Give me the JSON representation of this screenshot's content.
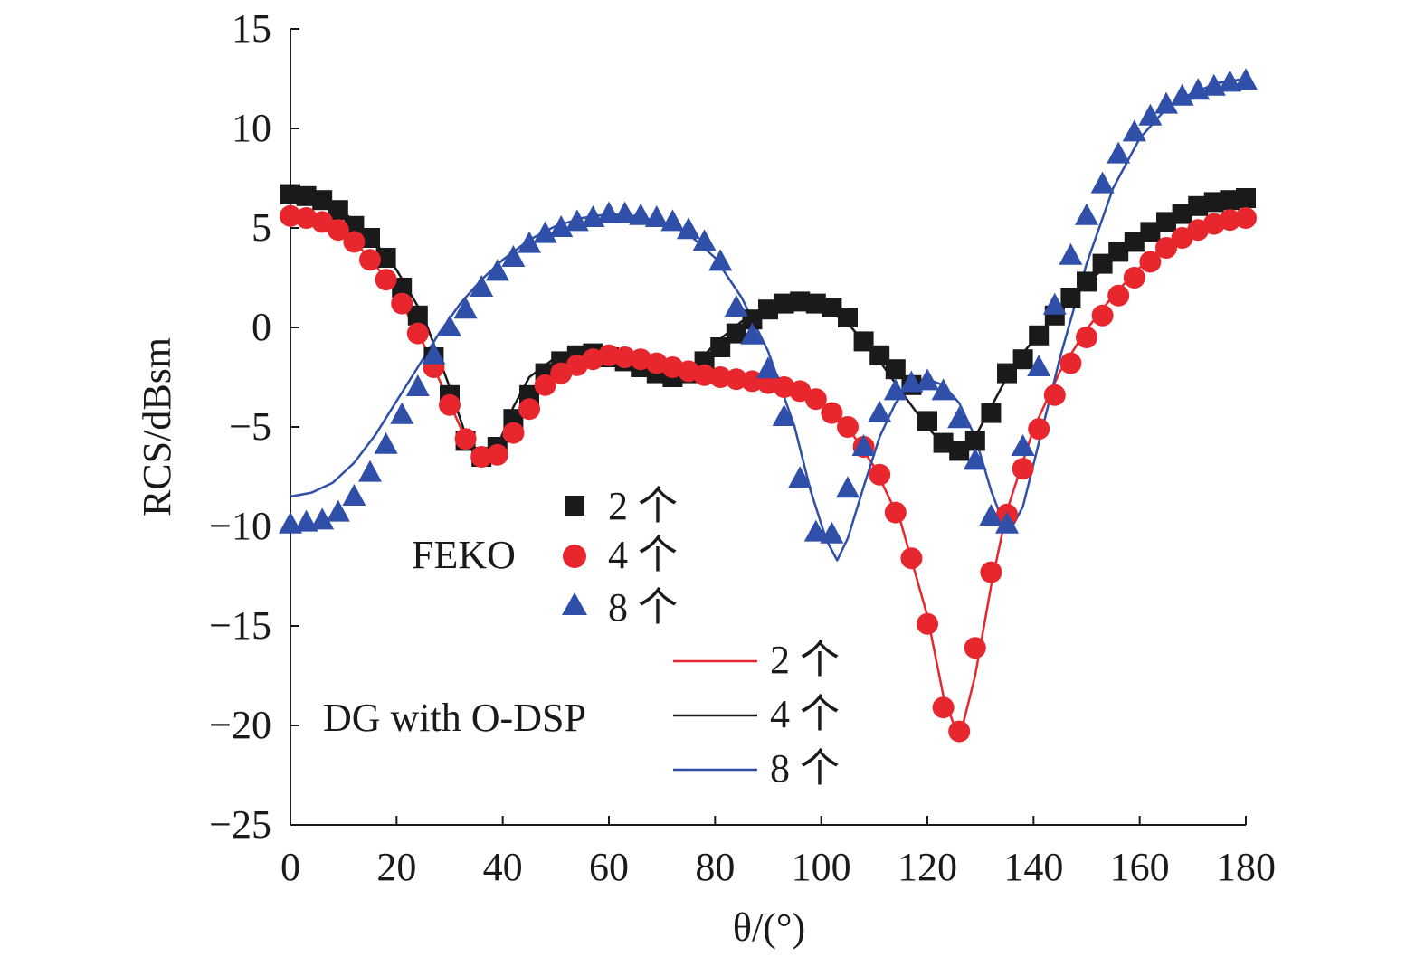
{
  "chart_data": {
    "type": "line",
    "title": "",
    "xlabel": "θ/(°)",
    "ylabel": "RCS/dBsm",
    "xlim": [
      0,
      180
    ],
    "ylim": [
      -25,
      15
    ],
    "xticks": [
      0,
      20,
      40,
      60,
      80,
      100,
      120,
      140,
      160,
      180
    ],
    "yticks": [
      15,
      10,
      5,
      0,
      -5,
      -10,
      -15,
      -20,
      -25
    ],
    "grid": false,
    "legend": {
      "feko_label": "FEKO",
      "dg_label": "DG with O-DSP",
      "feko_entries": [
        "2 个",
        "4 个",
        "8 个"
      ],
      "dg_entries": [
        "2 个",
        "4 个",
        "8 个"
      ]
    },
    "colors": {
      "two": "#1a1a1a",
      "four": "#e8262d",
      "eight": "#2f4fa8",
      "dg_two": "#e8262d",
      "dg_four": "#1a1a1a",
      "dg_eight": "#2f4fa8"
    },
    "series": [
      {
        "name": "FEKO 2 个",
        "marker": "square",
        "color": "#1a1a1a",
        "x": [
          0,
          3,
          6,
          9,
          12,
          15,
          18,
          21,
          24,
          27,
          30,
          33,
          36,
          39,
          42,
          45,
          48,
          51,
          54,
          57,
          60,
          63,
          66,
          69,
          72,
          75,
          78,
          81,
          84,
          87,
          90,
          93,
          96,
          99,
          102,
          105,
          108,
          111,
          114,
          117,
          120,
          123,
          126,
          129,
          132,
          135,
          138,
          141,
          144,
          147,
          150,
          153,
          156,
          159,
          162,
          165,
          168,
          171,
          174,
          177,
          180
        ],
        "y": [
          6.7,
          6.6,
          6.4,
          5.9,
          5.1,
          4.5,
          3.5,
          2.0,
          0.6,
          -1.5,
          -3.4,
          -5.7,
          -6.5,
          -6.0,
          -4.6,
          -3.4,
          -2.3,
          -1.7,
          -1.4,
          -1.3,
          -1.5,
          -1.7,
          -2.0,
          -2.3,
          -2.5,
          -2.3,
          -1.7,
          -1.0,
          -0.3,
          0.4,
          0.9,
          1.2,
          1.3,
          1.2,
          1.0,
          0.5,
          -0.7,
          -1.4,
          -2.1,
          -2.9,
          -4.7,
          -5.8,
          -6.2,
          -5.7,
          -4.3,
          -2.3,
          -1.6,
          -0.4,
          0.6,
          1.5,
          2.3,
          3.2,
          3.8,
          4.3,
          4.8,
          5.3,
          5.7,
          6.1,
          6.3,
          6.4,
          6.5
        ]
      },
      {
        "name": "FEKO 4 个",
        "marker": "circle",
        "color": "#e8262d",
        "x": [
          0,
          3,
          6,
          9,
          12,
          15,
          18,
          21,
          24,
          27,
          30,
          33,
          36,
          39,
          42,
          45,
          48,
          51,
          54,
          57,
          60,
          63,
          66,
          69,
          72,
          75,
          78,
          81,
          84,
          87,
          90,
          93,
          96,
          99,
          102,
          105,
          108,
          111,
          114,
          117,
          120,
          123,
          126,
          129,
          132,
          135,
          138,
          141,
          144,
          147,
          150,
          153,
          156,
          159,
          162,
          165,
          168,
          171,
          174,
          177,
          180
        ],
        "y": [
          5.6,
          5.5,
          5.3,
          4.9,
          4.3,
          3.4,
          2.4,
          1.2,
          -0.3,
          -2.0,
          -3.9,
          -5.6,
          -6.5,
          -6.4,
          -5.3,
          -4.1,
          -2.9,
          -2.3,
          -1.9,
          -1.6,
          -1.4,
          -1.5,
          -1.6,
          -1.8,
          -2.0,
          -2.2,
          -2.4,
          -2.5,
          -2.6,
          -2.7,
          -2.8,
          -3.0,
          -3.2,
          -3.6,
          -4.3,
          -5.0,
          -6.0,
          -7.4,
          -9.3,
          -11.6,
          -14.9,
          -19.1,
          -20.3,
          -16.1,
          -12.3,
          -9.4,
          -7.1,
          -5.1,
          -3.4,
          -1.8,
          -0.5,
          0.6,
          1.6,
          2.5,
          3.3,
          4.0,
          4.5,
          4.9,
          5.2,
          5.4,
          5.5
        ]
      },
      {
        "name": "FEKO 8 个",
        "marker": "triangle",
        "color": "#2f4fa8",
        "x": [
          0,
          3,
          6,
          9,
          12,
          15,
          18,
          21,
          24,
          27,
          30,
          33,
          36,
          39,
          42,
          45,
          48,
          51,
          54,
          57,
          60,
          63,
          66,
          69,
          72,
          75,
          78,
          81,
          84,
          87,
          90,
          93,
          96,
          99,
          102,
          105,
          108,
          111,
          114,
          117,
          120,
          123,
          126,
          129,
          132,
          135,
          138,
          141,
          144,
          147,
          150,
          153,
          156,
          159,
          162,
          165,
          168,
          171,
          174,
          177,
          180
        ],
        "y": [
          -9.9,
          -9.8,
          -9.7,
          -9.3,
          -8.5,
          -7.3,
          -5.9,
          -4.4,
          -3.0,
          -1.4,
          0.0,
          0.9,
          2.0,
          2.8,
          3.5,
          4.2,
          4.7,
          5.0,
          5.3,
          5.5,
          5.7,
          5.7,
          5.6,
          5.5,
          5.3,
          4.9,
          4.3,
          3.3,
          1.0,
          -0.4,
          -2.1,
          -4.5,
          -7.6,
          -10.3,
          -10.4,
          -8.1,
          -6.0,
          -4.3,
          -3.2,
          -2.8,
          -2.7,
          -3.2,
          -4.6,
          -6.7,
          -9.5,
          -9.9,
          -6.0,
          -2.0,
          1.1,
          3.6,
          5.6,
          7.2,
          8.7,
          9.8,
          10.6,
          11.2,
          11.6,
          11.9,
          12.1,
          12.3,
          12.4
        ]
      },
      {
        "name": "DG with O-DSP 2 个",
        "marker": "line",
        "color": "#e8262d",
        "x": [
          0,
          5,
          10,
          15,
          20,
          25,
          30,
          33,
          35,
          37,
          40,
          45,
          50,
          55,
          60,
          65,
          70,
          75,
          80,
          85,
          90,
          95,
          100,
          105,
          110,
          115,
          120,
          123,
          126,
          129,
          132,
          135,
          140,
          145,
          150,
          155,
          160,
          165,
          170,
          175,
          180
        ],
        "y": [
          5.6,
          5.4,
          4.8,
          3.5,
          1.7,
          -0.8,
          -3.8,
          -5.6,
          -6.4,
          -6.6,
          -5.8,
          -3.8,
          -2.5,
          -1.8,
          -1.5,
          -1.6,
          -1.9,
          -2.2,
          -2.4,
          -2.6,
          -2.8,
          -3.2,
          -3.8,
          -5.0,
          -7.0,
          -9.8,
          -14.5,
          -18.5,
          -20.7,
          -17.5,
          -13.0,
          -9.2,
          -5.1,
          -2.2,
          -0.1,
          1.6,
          3.0,
          4.2,
          4.8,
          5.3,
          5.5
        ]
      },
      {
        "name": "DG with O-DSP 4 个",
        "marker": "line",
        "color": "#1a1a1a",
        "x": [
          0,
          5,
          10,
          15,
          20,
          25,
          30,
          33,
          36,
          39,
          42,
          45,
          50,
          55,
          58,
          61,
          64,
          67,
          70,
          73,
          76,
          80,
          85,
          90,
          95,
          100,
          105,
          110,
          115,
          120,
          123,
          126,
          129,
          132,
          135,
          138,
          141,
          145,
          150,
          155,
          160,
          165,
          170,
          175,
          180
        ],
        "y": [
          6.7,
          6.4,
          5.8,
          4.6,
          2.9,
          0.6,
          -3.0,
          -5.4,
          -6.7,
          -6.0,
          -4.0,
          -2.5,
          -1.5,
          -1.1,
          -1.2,
          -1.5,
          -1.7,
          -1.9,
          -2.2,
          -2.3,
          -2.0,
          -0.8,
          0.3,
          0.9,
          1.2,
          1.1,
          0.2,
          -1.3,
          -3.2,
          -5.0,
          -5.9,
          -6.1,
          -5.5,
          -4.0,
          -2.5,
          -1.3,
          -0.3,
          0.8,
          2.2,
          3.4,
          4.4,
          5.2,
          5.8,
          6.2,
          6.5
        ]
      },
      {
        "name": "DG with O-DSP 8 个",
        "marker": "line",
        "color": "#2f4fa8",
        "x": [
          0,
          4,
          8,
          12,
          16,
          20,
          24,
          28,
          32,
          36,
          40,
          45,
          50,
          55,
          60,
          65,
          70,
          75,
          80,
          85,
          90,
          95,
          98,
          101,
          103,
          105,
          108,
          111,
          114,
          117,
          120,
          123,
          126,
          129,
          132,
          134,
          136,
          138,
          141,
          145,
          150,
          155,
          160,
          165,
          170,
          175,
          180
        ],
        "y": [
          -8.5,
          -8.3,
          -7.8,
          -6.8,
          -5.4,
          -3.7,
          -2.0,
          -0.3,
          1.2,
          2.4,
          3.4,
          4.4,
          5.1,
          5.5,
          5.7,
          5.6,
          5.3,
          4.7,
          3.5,
          1.5,
          -1.2,
          -5.0,
          -8.2,
          -10.7,
          -11.7,
          -10.6,
          -8.0,
          -5.5,
          -3.8,
          -2.9,
          -2.6,
          -2.9,
          -3.8,
          -5.5,
          -8.2,
          -9.6,
          -10.0,
          -9.0,
          -5.8,
          -1.5,
          3.2,
          7.0,
          9.5,
          11.0,
          11.8,
          12.3,
          12.5
        ]
      }
    ]
  }
}
